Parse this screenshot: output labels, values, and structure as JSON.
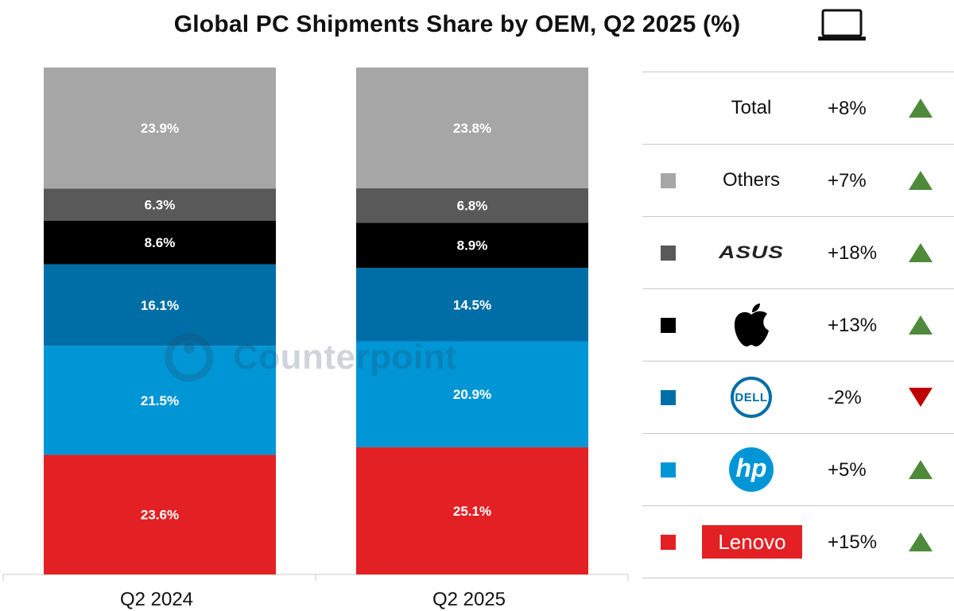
{
  "title": "Global PC Shipments Share by OEM, Q2 2025 (%)",
  "watermark": "Counterpoint",
  "colors": {
    "others": "#a6a6a6",
    "asus": "#595959",
    "apple": "#000000",
    "dell": "#006ea6",
    "hp": "#0096d6",
    "lenovo": "#e32024",
    "up": "#4e8a3a",
    "down": "#c00000"
  },
  "chart_data": {
    "type": "bar",
    "stacked": true,
    "categories": [
      "Q2 2024",
      "Q2 2025"
    ],
    "ylim": [
      0,
      100
    ],
    "series": [
      {
        "name": "Lenovo",
        "color_key": "lenovo",
        "values": [
          23.6,
          25.1
        ],
        "labels": [
          "23.6%",
          "25.1%"
        ]
      },
      {
        "name": "HP",
        "color_key": "hp",
        "values": [
          21.5,
          20.9
        ],
        "labels": [
          "21.5%",
          "20.9%"
        ]
      },
      {
        "name": "Dell",
        "color_key": "dell",
        "values": [
          16.1,
          14.5
        ],
        "labels": [
          "16.1%",
          "14.5%"
        ]
      },
      {
        "name": "Apple",
        "color_key": "apple",
        "values": [
          8.6,
          8.9
        ],
        "labels": [
          "8.6%",
          "8.9%"
        ]
      },
      {
        "name": "Asus",
        "color_key": "asus",
        "values": [
          6.3,
          6.8
        ],
        "labels": [
          "6.3%",
          "6.8%"
        ]
      },
      {
        "name": "Others",
        "color_key": "others",
        "values": [
          23.9,
          23.8
        ],
        "labels": [
          "23.9%",
          "23.8%"
        ]
      }
    ]
  },
  "legend": {
    "rows": [
      {
        "name": "Total",
        "brand_text": "Total",
        "change": "+8%",
        "direction": "up",
        "color_key": ""
      },
      {
        "name": "Others",
        "brand_text": "Others",
        "change": "+7%",
        "direction": "up",
        "color_key": "others"
      },
      {
        "name": "Asus",
        "brand_text": "ASUS",
        "change": "+18%",
        "direction": "up",
        "color_key": "asus"
      },
      {
        "name": "Apple",
        "brand_text": "",
        "change": "+13%",
        "direction": "up",
        "color_key": "apple"
      },
      {
        "name": "Dell",
        "brand_text": "DELL",
        "change": "-2%",
        "direction": "down",
        "color_key": "dell"
      },
      {
        "name": "HP",
        "brand_text": "hp",
        "change": "+5%",
        "direction": "up",
        "color_key": "hp"
      },
      {
        "name": "Lenovo",
        "brand_text": "Lenovo",
        "change": "+15%",
        "direction": "up",
        "color_key": "lenovo"
      }
    ]
  }
}
